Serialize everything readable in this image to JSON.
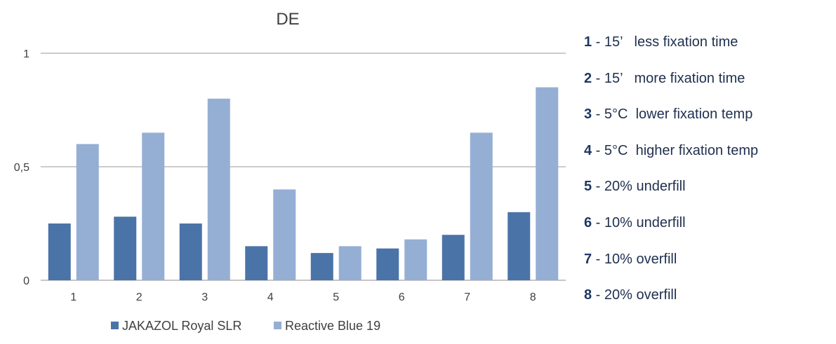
{
  "chart_data": {
    "type": "bar",
    "title": "DE",
    "xlabel": "",
    "ylabel": "",
    "categories": [
      "1",
      "2",
      "3",
      "4",
      "5",
      "6",
      "7",
      "8"
    ],
    "ylim": [
      0,
      1
    ],
    "yticks": [
      "0",
      "0,5",
      "1"
    ],
    "ytick_values": [
      0,
      0.5,
      1
    ],
    "grid": true,
    "legend_position": "bottom",
    "series": [
      {
        "name": "JAKAZOL Royal SLR",
        "color": "#4a73a8",
        "values": [
          0.25,
          0.28,
          0.25,
          0.15,
          0.12,
          0.14,
          0.2,
          0.3
        ]
      },
      {
        "name": "Reactive Blue 19",
        "color": "#95aed4",
        "values": [
          0.6,
          0.65,
          0.8,
          0.4,
          0.15,
          0.18,
          0.65,
          0.85
        ]
      }
    ]
  },
  "notes": [
    {
      "num": "1",
      "sep": " - ",
      "text": "15’   less fixation time"
    },
    {
      "num": "2",
      "sep": " - ",
      "text": "15’   more fixation time"
    },
    {
      "num": "3",
      "sep": " - ",
      "text": "5°C  lower fixation temp"
    },
    {
      "num": "4",
      "sep": " - ",
      "text": "5°C  higher fixation temp"
    },
    {
      "num": "5",
      "sep": " - ",
      "text": "20% underfill"
    },
    {
      "num": "6",
      "sep": " - ",
      "text": "10% underfill"
    },
    {
      "num": "7",
      "sep": " - ",
      "text": "10% overfill"
    },
    {
      "num": "8",
      "sep": " - ",
      "text": "20% overfill"
    }
  ]
}
